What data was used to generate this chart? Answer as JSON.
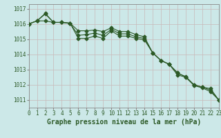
{
  "title": "Graphe pression niveau de la mer (hPa)",
  "background_color": "#cce8e8",
  "grid_color": "#aacccc",
  "line_color": "#2d5a27",
  "x": [
    0,
    1,
    2,
    3,
    4,
    5,
    6,
    7,
    8,
    9,
    10,
    11,
    12,
    13,
    14,
    15,
    16,
    17,
    18,
    19,
    20,
    21,
    22,
    23
  ],
  "line1": [
    1016.0,
    1016.2,
    1016.65,
    1016.1,
    1016.1,
    1016.05,
    1015.55,
    1015.55,
    1015.6,
    1015.5,
    1015.75,
    1015.5,
    1015.5,
    1015.3,
    1015.15,
    1014.1,
    1013.6,
    1013.35,
    1012.8,
    1012.5,
    1012.0,
    1011.85,
    1011.75,
    1011.0
  ],
  "line2": [
    1016.0,
    1016.2,
    1016.2,
    1016.1,
    1016.1,
    1016.05,
    1015.05,
    1015.05,
    1015.2,
    1015.05,
    1015.55,
    1015.2,
    1015.2,
    1015.05,
    1014.95,
    1014.1,
    1013.6,
    1013.35,
    1012.65,
    1012.5,
    1011.95,
    1011.8,
    1011.55,
    1011.0
  ],
  "line3": [
    1016.0,
    1016.2,
    1016.7,
    1016.1,
    1016.1,
    1016.05,
    1015.25,
    1015.3,
    1015.4,
    1015.25,
    1015.65,
    1015.35,
    1015.35,
    1015.15,
    1015.05,
    1014.1,
    1013.6,
    1013.35,
    1012.75,
    1012.55,
    1012.0,
    1011.85,
    1011.65,
    1011.0
  ],
  "ylim": [
    1010.5,
    1017.3
  ],
  "yticks": [
    1011,
    1012,
    1013,
    1014,
    1015,
    1016,
    1017
  ],
  "xlim": [
    0,
    23
  ],
  "title_fontsize": 7,
  "tick_fontsize": 5.5
}
